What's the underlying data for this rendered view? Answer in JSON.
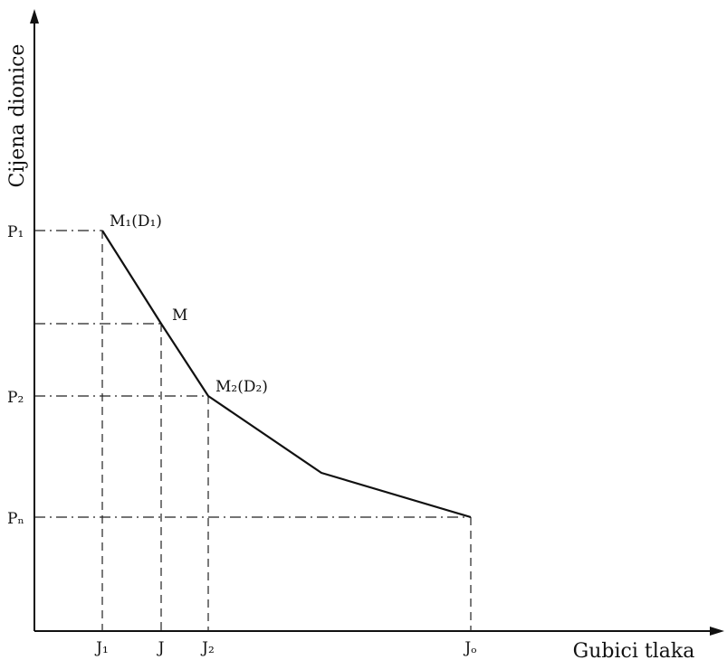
{
  "axes": {
    "y_title": "Cijena dionice",
    "x_title": "Gubici tlaka"
  },
  "y_ticks": [
    "P₁",
    "P₂",
    "Pₙ"
  ],
  "x_ticks": [
    "J₁",
    "J",
    "J₂",
    "Jₒ"
  ],
  "points": {
    "m1": "M₁(D₁)",
    "m": "M",
    "m2": "M₂(D₂)"
  },
  "colors": {
    "ink": "#111111",
    "background": "#ffffff"
  }
}
